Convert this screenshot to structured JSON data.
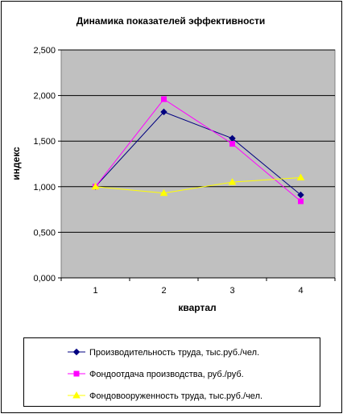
{
  "chart_data": {
    "type": "line",
    "title": "Динамика показателей эффективности",
    "xlabel": "квартал",
    "ylabel": "индекс",
    "categories": [
      "1",
      "2",
      "3",
      "4"
    ],
    "ylim": [
      0,
      2.5
    ],
    "yticks": [
      "0,000",
      "0,500",
      "1,000",
      "1,500",
      "2,000",
      "2,500"
    ],
    "grid": true,
    "legend_position": "bottom",
    "plot_background": "#c0c0c0",
    "series": [
      {
        "name": "Производительность труда, тыс.руб./чел.",
        "values": [
          1.0,
          1.82,
          1.53,
          0.91
        ],
        "color": "#000080",
        "marker": "diamond"
      },
      {
        "name": "Фондоотдача производства, руб./руб.",
        "values": [
          1.0,
          1.96,
          1.47,
          0.84
        ],
        "color": "#ff00ff",
        "marker": "square"
      },
      {
        "name": "Фондовооруженность труда, тыс.руб./чел.",
        "values": [
          1.0,
          0.93,
          1.05,
          1.1
        ],
        "color": "#ffff00",
        "marker": "triangle"
      }
    ]
  }
}
